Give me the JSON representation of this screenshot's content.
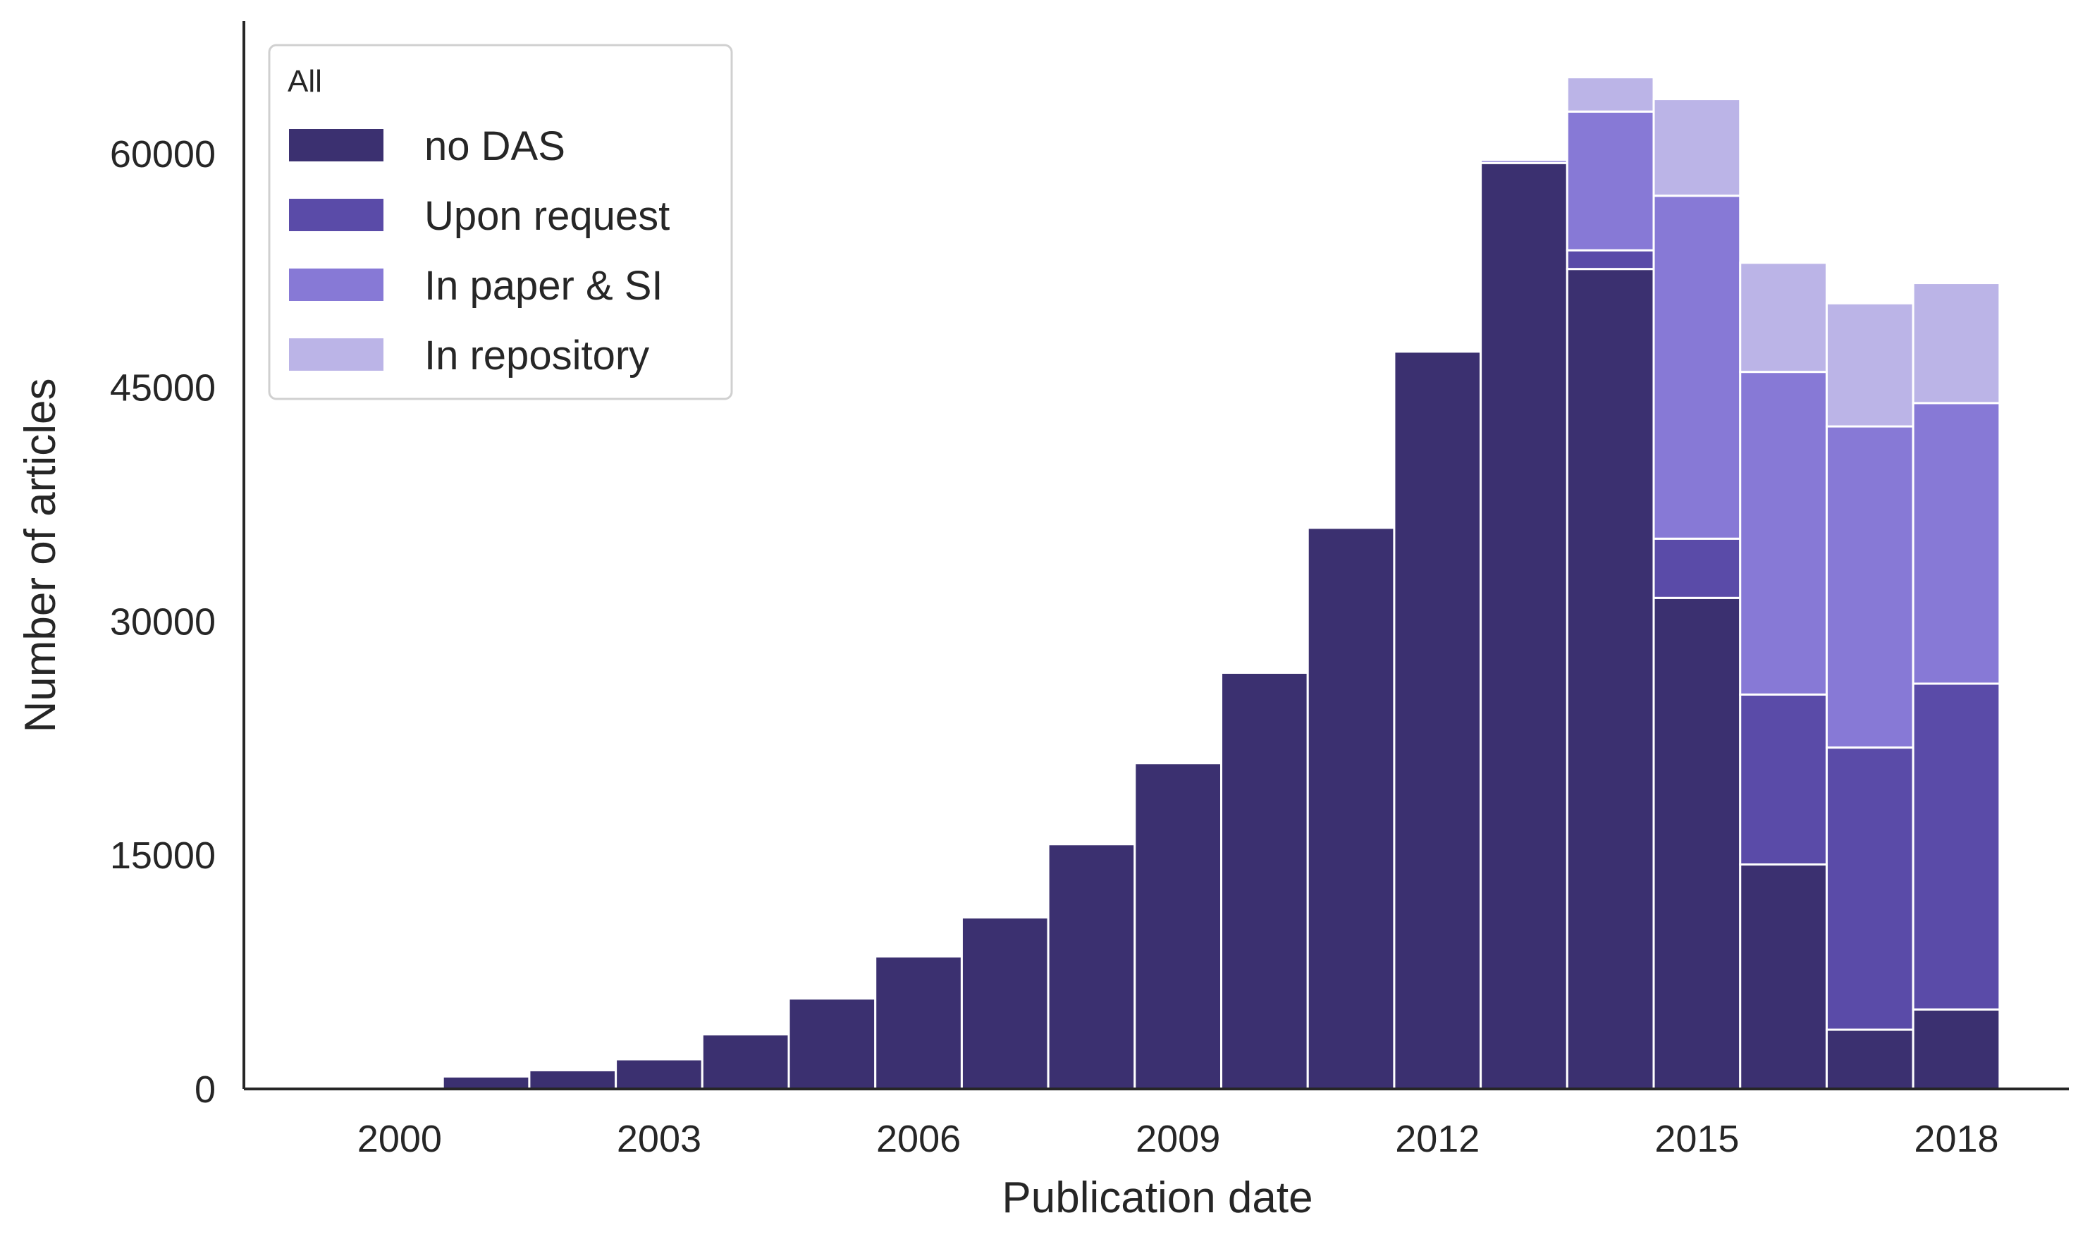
{
  "chart_data": {
    "type": "bar",
    "stacked": true,
    "xlabel": "Publication date",
    "ylabel": "Number of articles",
    "categories": [
      2000,
      2001,
      2002,
      2003,
      2004,
      2005,
      2006,
      2007,
      2008,
      2009,
      2010,
      2011,
      2012,
      2013,
      2014,
      2015,
      2016,
      2017,
      2018
    ],
    "x_ticks": [
      "2000",
      "2003",
      "2006",
      "2009",
      "2012",
      "2015",
      "2018"
    ],
    "y_ticks": [
      "0",
      "15000",
      "30000",
      "45000",
      "60000"
    ],
    "ylim": [
      0,
      68500
    ],
    "legend": {
      "title": "All",
      "position": "top-left"
    },
    "grid": false,
    "series": [
      {
        "name": "no DAS",
        "color": "#3b3070",
        "values": [
          100,
          800,
          1200,
          1900,
          3500,
          5800,
          8500,
          11000,
          15700,
          20900,
          26700,
          36000,
          47300,
          59400,
          52600,
          31500,
          14400,
          3800,
          5100
        ]
      },
      {
        "name": "Upon request",
        "color": "#5a4ba8",
        "values": [
          0,
          0,
          0,
          0,
          0,
          0,
          0,
          0,
          0,
          0,
          0,
          0,
          0,
          0,
          1200,
          3800,
          10900,
          18100,
          20900
        ]
      },
      {
        "name": "In paper & SI",
        "color": "#8779d6",
        "values": [
          0,
          0,
          0,
          0,
          0,
          0,
          0,
          0,
          0,
          0,
          0,
          0,
          0,
          200,
          8900,
          22000,
          20700,
          20600,
          18000
        ]
      },
      {
        "name": "In repository",
        "color": "#bbb4e7",
        "values": [
          0,
          0,
          0,
          0,
          0,
          0,
          0,
          0,
          0,
          0,
          0,
          0,
          0,
          100,
          2200,
          6200,
          7000,
          7900,
          7700
        ]
      }
    ]
  }
}
